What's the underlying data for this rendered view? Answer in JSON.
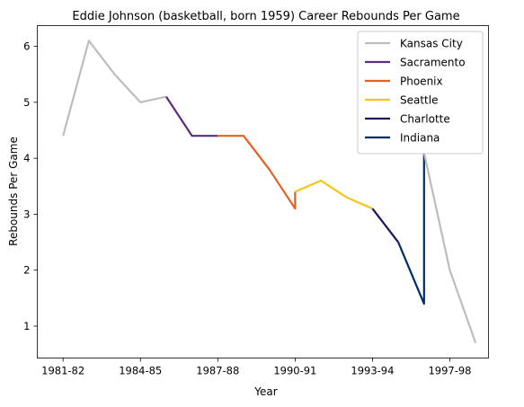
{
  "chart_data": {
    "type": "line",
    "title": "Eddie Johnson (basketball, born 1959) Career Rebounds Per Game",
    "xlabel": "Year",
    "ylabel": "Rebounds Per Game",
    "x_tick_labels": [
      "1981-82",
      "1984-85",
      "1987-88",
      "1990-91",
      "1993-94",
      "1997-98"
    ],
    "x_tick_positions": [
      0,
      3,
      6,
      9,
      12,
      15
    ],
    "y_ticks": [
      1,
      2,
      3,
      4,
      5,
      6
    ],
    "xlim": [
      -1,
      16.5
    ],
    "ylim": [
      0.43,
      6.37
    ],
    "grid": false,
    "legend_position": "top-right",
    "series": [
      {
        "name": "Kansas City",
        "color": "#bdbdbd",
        "points": [
          [
            0,
            4.4
          ],
          [
            1,
            6.1
          ],
          [
            2,
            5.5
          ],
          [
            3,
            5.0
          ],
          [
            4,
            5.1
          ]
        ]
      },
      {
        "name": "Sacramento",
        "color": "#5a2d81",
        "points": [
          [
            4,
            5.1
          ],
          [
            5,
            4.4
          ],
          [
            6,
            4.4
          ]
        ]
      },
      {
        "name": "Phoenix",
        "color": "#e56020",
        "points": [
          [
            6,
            4.4
          ],
          [
            7,
            4.4
          ],
          [
            8,
            3.8
          ],
          [
            9,
            3.1
          ],
          [
            9,
            3.4
          ]
        ]
      },
      {
        "name": "Seattle",
        "color": "#f5c518",
        "points": [
          [
            9,
            3.4
          ],
          [
            10,
            3.6
          ],
          [
            11,
            3.3
          ],
          [
            12,
            3.1
          ]
        ]
      },
      {
        "name": "Charlotte",
        "color": "#1d1160",
        "points": [
          [
            12,
            3.1
          ],
          [
            13,
            2.5
          ]
        ]
      },
      {
        "name": "Indiana",
        "color": "#002d62",
        "points": [
          [
            13,
            2.5
          ],
          [
            14,
            1.4
          ],
          [
            14,
            4.1
          ]
        ]
      },
      {
        "name": "Kansas City (late)",
        "legend": false,
        "color": "#bdbdbd",
        "points": [
          [
            14,
            4.1
          ],
          [
            15,
            2.0
          ],
          [
            16,
            0.7
          ]
        ]
      }
    ]
  }
}
